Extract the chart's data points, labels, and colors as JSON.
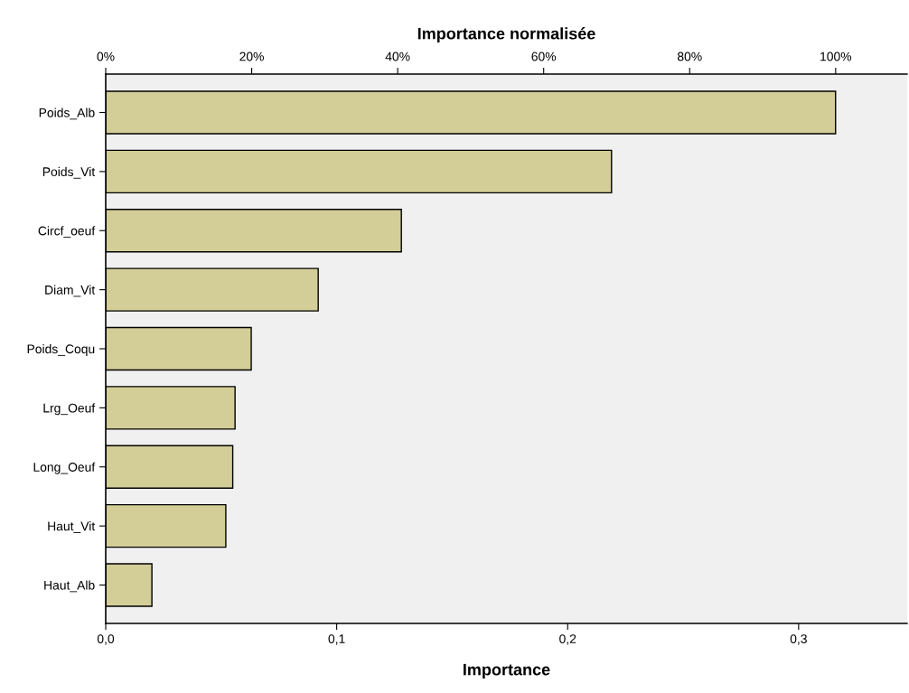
{
  "chart_data": {
    "type": "bar",
    "orientation": "horizontal",
    "xlabel": "Importance",
    "x2label": "Importance normalisée",
    "categories": [
      "Poids_Alb",
      "Poids_Vit",
      "Circf_oeuf",
      "Diam_Vit",
      "Poids_Coqu",
      "Lrg_Oeuf",
      "Long_Oeuf",
      "Haut_Vit",
      "Haut_Alb"
    ],
    "values": [
      0.316,
      0.219,
      0.128,
      0.092,
      0.063,
      0.056,
      0.055,
      0.052,
      0.02
    ],
    "color": "#d3ce98",
    "xlim": [
      0,
      0.347
    ],
    "xticks": [
      {
        "value": 0,
        "label": "0,0"
      },
      {
        "value": 0.1,
        "label": "0,1"
      },
      {
        "value": 0.2,
        "label": "0,2"
      },
      {
        "value": 0.3,
        "label": "0,3"
      }
    ],
    "x2lim": [
      0,
      109.8
    ],
    "x2ticks": [
      {
        "value": 0,
        "label": "0%"
      },
      {
        "value": 20,
        "label": "20%"
      },
      {
        "value": 40,
        "label": "40%"
      },
      {
        "value": 60,
        "label": "60%"
      },
      {
        "value": 80,
        "label": "80%"
      },
      {
        "value": 100,
        "label": "100%"
      }
    ],
    "grid": false,
    "legend": false
  }
}
